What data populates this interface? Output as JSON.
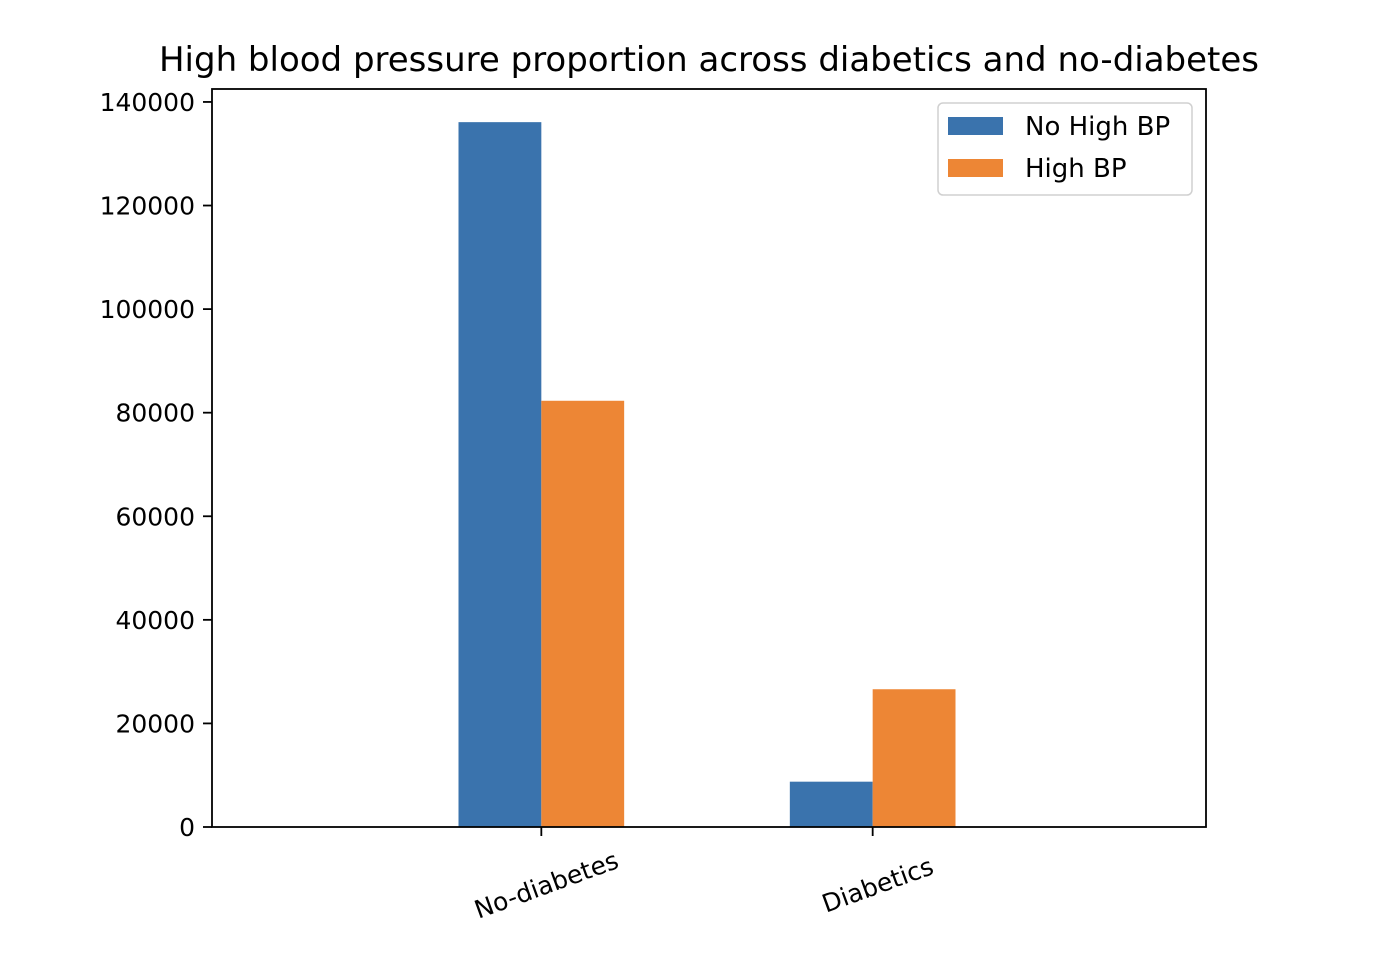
{
  "chart_data": {
    "type": "bar",
    "title": "High blood pressure proportion across diabetics and no-diabetes",
    "xlabel": "",
    "ylabel": "",
    "categories": [
      "No-diabetes",
      "Diabetics"
    ],
    "series": [
      {
        "name": "No High BP",
        "color": "#3a73ad",
        "values": [
          136100,
          8750
        ]
      },
      {
        "name": "High BP",
        "color": "#ed8635",
        "values": [
          82300,
          26600
        ]
      }
    ],
    "ylim": [
      0,
      142500
    ],
    "yticks": [
      0,
      20000,
      40000,
      60000,
      80000,
      100000,
      120000,
      140000
    ],
    "ytick_labels": [
      "0",
      "20000",
      "40000",
      "60000",
      "80000",
      "100000",
      "120000",
      "140000"
    ],
    "xtick_rotation_deg": -20,
    "legend_position": "top-right",
    "grid": false
  }
}
